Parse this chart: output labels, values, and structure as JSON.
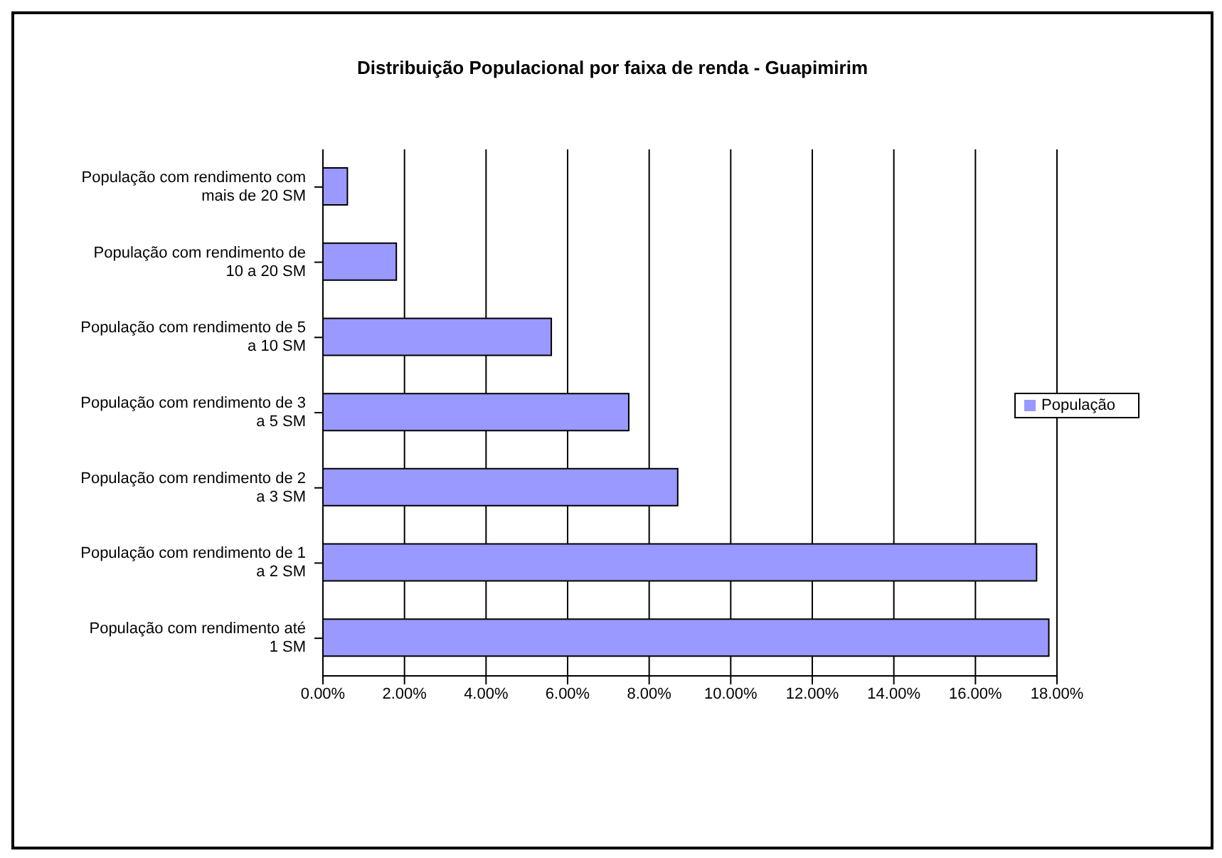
{
  "chart_data": {
    "type": "bar",
    "orientation": "horizontal",
    "title": "Distribuição Populacional por faixa de renda - Guapimirim",
    "categories": [
      "População com rendimento com mais de 20 SM",
      "População com rendimento de 10 a 20 SM",
      "População com rendimento de 5 a 10 SM",
      "População com rendimento de 3 a 5 SM",
      "População com rendimento de 2 a 3 SM",
      "População com rendimento de 1 a 2 SM",
      "População com rendimento até 1 SM"
    ],
    "series": [
      {
        "name": "População",
        "color": "#9999ff",
        "values": [
          0.6,
          1.8,
          5.6,
          7.5,
          8.7,
          17.5,
          17.8
        ]
      }
    ],
    "xlim": [
      0,
      18
    ],
    "xticks": [
      {
        "value": 0,
        "label": "0.00%"
      },
      {
        "value": 2,
        "label": "2.00%"
      },
      {
        "value": 4,
        "label": "4.00%"
      },
      {
        "value": 6,
        "label": "6.00%"
      },
      {
        "value": 8,
        "label": "8.00%"
      },
      {
        "value": 10,
        "label": "10.00%"
      },
      {
        "value": 12,
        "label": "12.00%"
      },
      {
        "value": 14,
        "label": "14.00%"
      },
      {
        "value": 16,
        "label": "16.00%"
      },
      {
        "value": 18,
        "label": "18.00%"
      }
    ],
    "grid": "x",
    "legend": "right"
  }
}
